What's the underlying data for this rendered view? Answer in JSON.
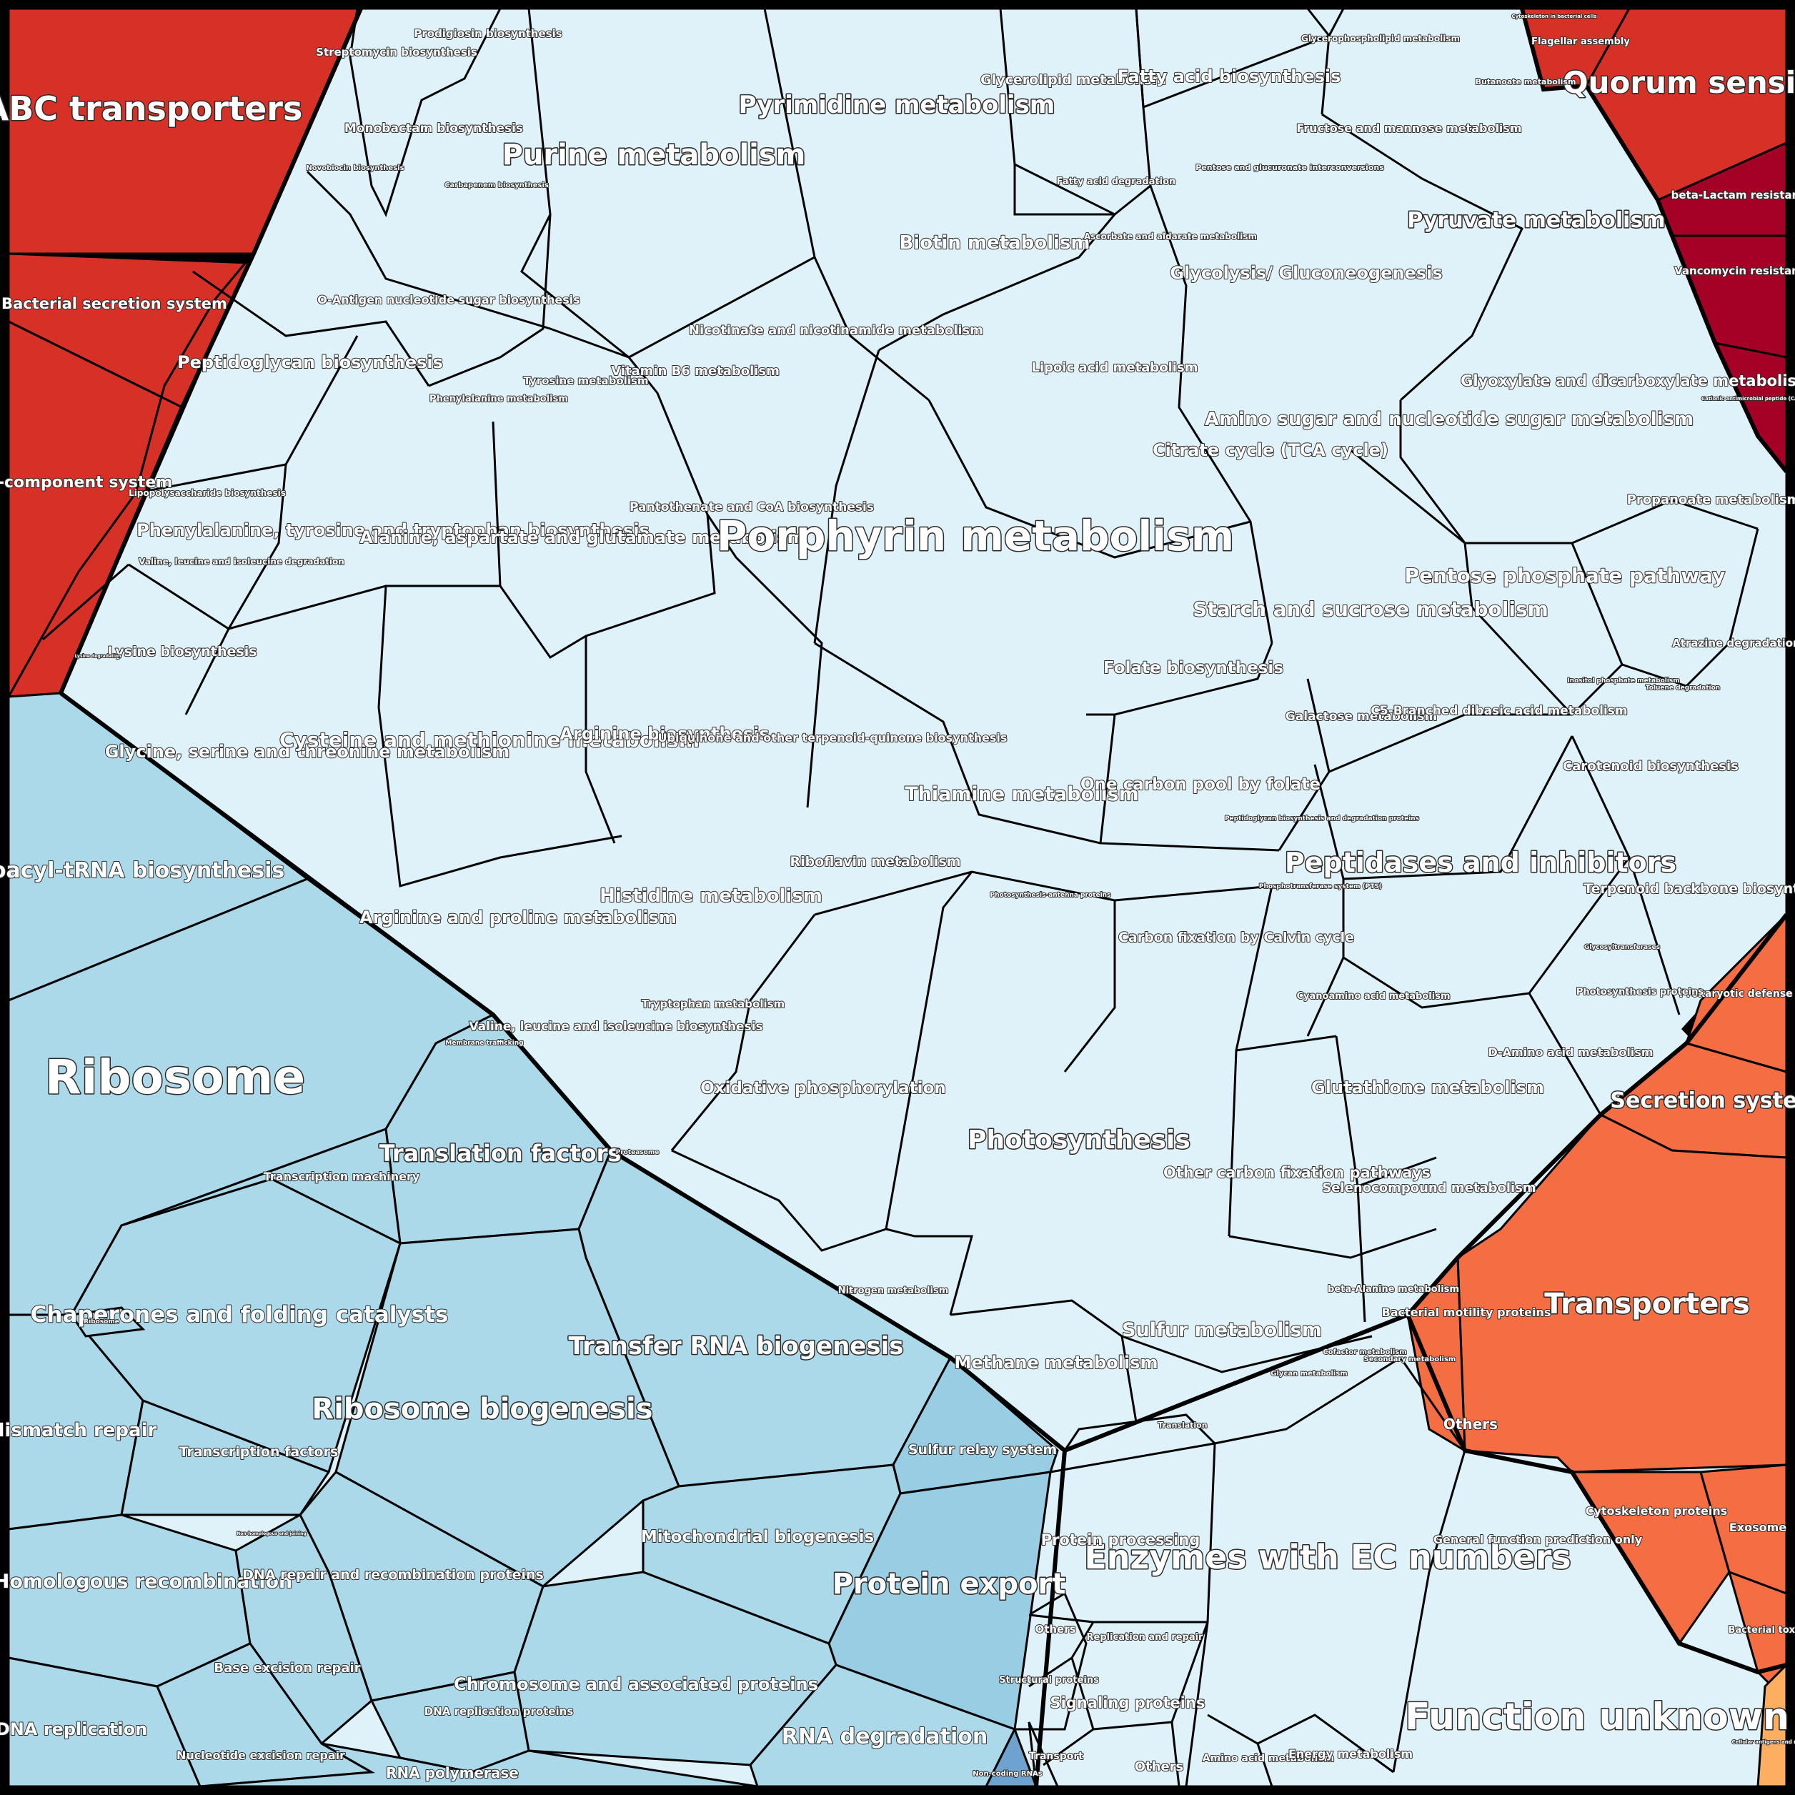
{
  "palette": {
    "light_blue": "#dff2f9",
    "mid_blue": "#abd9e9",
    "mid_blue_dark": "#99cde3",
    "steel_blue": "#6fa3cf",
    "red": "#d73027",
    "dark_red": "#a50026",
    "orange_red": "#f46d43",
    "orange": "#fdae61",
    "border": "#000000"
  },
  "regions": {
    "abc_transporters": "ABC transporters",
    "bacterial_secretion_system": "Bacterial secretion system",
    "two_component_system": "Two-component system",
    "quorum_sensing": "Quorum sensing",
    "flagellar_assembly": "Flagellar assembly",
    "cytoskeleton_bacterial": "Cytoskeleton in bacterial cells",
    "beta_lactam_resistance": "beta-Lactam resistance",
    "vancomycin_resistance": "Vancomycin resistance",
    "camp_resistance": "Cationic antimicrobial peptide (CAMP) resistance",
    "purine_metabolism": "Purine metabolism",
    "pyrimidine_metabolism": "Pyrimidine metabolism",
    "streptomycin_biosynthesis": "Streptomycin biosynthesis",
    "prodigiosin_biosynthesis": "Prodigiosin biosynthesis",
    "monobactam_biosynthesis": "Monobactam biosynthesis",
    "novobiocin_biosynthesis": "Novobiocin biosynthesis",
    "carbapenem_biosynthesis": "Carbapenem biosynthesis",
    "glycerolipid_metabolism": "Glycerolipid metabolism",
    "fatty_acid_biosynthesis": "Fatty acid biosynthesis",
    "glycerophospholipid_metabolism": "Glycerophospholipid metabolism",
    "butanoate_metabolism": "Butanoate metabolism",
    "fructose_mannose": "Fructose and mannose metabolism",
    "pentose_glucuronate": "Pentose and glucuronate interconversions",
    "fatty_acid_degradation": "Fatty acid degradation",
    "ascorbate_aldarate": "Ascorbate and aldarate metabolism",
    "pyruvate_metabolism": "Pyruvate metabolism",
    "glycolysis": "Glycolysis/ Gluconeogenesis",
    "biotin_metabolism": "Biotin metabolism",
    "o_antigen": "O-Antigen nucleotide sugar biosynthesis",
    "peptidoglycan": "Peptidoglycan biosynthesis",
    "nicotinate": "Nicotinate and nicotinamide metabolism",
    "lipoic_acid": "Lipoic acid metabolism",
    "vitamin_b6": "Vitamin B6 metabolism",
    "tyrosine_metabolism": "Tyrosine metabolism",
    "phenylalanine_metabolism": "Phenylalanine metabolism",
    "amino_sugar": "Amino sugar and nucleotide sugar metabolism",
    "glyoxylate": "Glyoxylate and dicarboxylate metabolism",
    "citrate_cycle": "Citrate cycle (TCA cycle)",
    "lipopolysaccharide": "Lipopolysaccharide biosynthesis",
    "phe_tyr_trp": "Phenylalanine, tyrosine and tryptophan biosynthesis",
    "ala_asp_glu": "Alanine, aspartate and glutamate metabolism",
    "pantothenate": "Pantothenate and CoA biosynthesis",
    "porphyrin": "Porphyrin metabolism",
    "propanoate": "Propanoate metabolism",
    "val_leu_ile_degradation": "Valine, leucine and isoleucine degradation",
    "starch_sucrose": "Starch and sucrose metabolism",
    "pentose_phosphate": "Pentose phosphate pathway",
    "lysine_biosynthesis": "Lysine biosynthesis",
    "lysine_degradation": "Lysine degradation",
    "atrazine_degradation": "Atrazine degradation",
    "folate_biosynthesis": "Folate biosynthesis",
    "inositol_phosphate": "Inositol phosphate metabolism",
    "toluene_degradation": "Toluene degradation",
    "galactose": "Galactose metabolism",
    "c5_branched": "C5-Branched dibasic acid metabolism",
    "glycine_serine_threonine": "Glycine, serine and threonine metabolism",
    "cysteine_methionine": "Cysteine and methionine metabolism",
    "arginine_biosynthesis": "Arginine biosynthesis",
    "ubiquinone": "Ubiquinone and other terpenoid-quinone biosynthesis",
    "thiamine": "Thiamine metabolism",
    "one_carbon": "One carbon pool by folate",
    "carotenoid": "Carotenoid biosynthesis",
    "aminoacyl_trna": "Aminoacyl-tRNA biosynthesis",
    "peptidases": "Peptidases and inhibitors",
    "peptidoglycan_proteins": "Peptidoglycan biosynthesis and degradation proteins",
    "riboflavin": "Riboflavin metabolism",
    "arginine_proline": "Arginine and proline metabolism",
    "histidine": "Histidine metabolism",
    "photosynthesis_antenna": "Photosynthesis-antenna proteins",
    "carbon_fixation_calvin": "Carbon fixation by Calvin cycle",
    "phosphotransferase": "Phosphotransferase system (PTS)",
    "terpenoid_backbone": "Terpenoid backbone biosynthesis",
    "glycosyltransferases": "Glycosyltransferases",
    "prokaryotic_defense": "Prokaryotic defense system",
    "cyanoamino_acid": "Cyanoamino acid metabolism",
    "photosynthesis_proteins": "Photosynthesis proteins",
    "tryptophan": "Tryptophan metabolism",
    "val_leu_ile_biosynthesis": "Valine, leucine and isoleucine biosynthesis",
    "ribosome": "Ribosome",
    "membrane_trafficking": "Membrane trafficking",
    "d_amino_acid": "D-Amino acid metabolism",
    "oxidative_phosphorylation": "Oxidative phosphorylation",
    "glutathione": "Glutathione metabolism",
    "secretion_system": "Secretion system",
    "translation_factors": "Translation factors",
    "transcription_machinery": "Transcription machinery",
    "proteasome": "Proteasome",
    "photosynthesis": "Photosynthesis",
    "other_carbon_fixation": "Other carbon fixation pathways",
    "selenocompound": "Selenocompound metabolism",
    "chaperones": "Chaperones and folding catalysts",
    "transfer_rna_biogenesis": "Transfer RNA biogenesis",
    "ribosome_small": "Ribosome",
    "transporters": "Transporters",
    "nitrogen": "Nitrogen metabolism",
    "beta_alanine": "beta-Alanine metabolism",
    "bacterial_motility": "Bacterial motility proteins",
    "sulfur_metabolism": "Sulfur metabolism",
    "methane": "Methane metabolism",
    "glycan_metabolism": "Glycan metabolism",
    "cofactor_metabolism": "Cofactor metabolism",
    "secondary_metabolism": "Secondary metabolism",
    "mismatch_repair": "Mismatch repair",
    "transcription_factors": "Transcription factors",
    "ribosome_biogenesis": "Ribosome biogenesis",
    "sulfur_relay": "Sulfur relay system",
    "translation": "Translation",
    "others_top": "Others",
    "enzymes_ec": "Enzymes with EC numbers",
    "general_function": "General function prediction only",
    "cytoskeleton_proteins": "Cytoskeleton proteins",
    "exosome": "Exosome",
    "mitochondrial_biogenesis": "Mitochondrial biogenesis",
    "protein_processing": "Protein processing",
    "homologous_recombination": "Homologous recombination",
    "homologous_end_joining": "Non-homologous end-joining",
    "dna_repair_recombination": "DNA repair and recombination proteins",
    "protein_export": "Protein export",
    "others_mid": "Others",
    "replication_repair": "Replication and repair",
    "bacterial_toxins": "Bacterial toxins",
    "base_excision_repair": "Base excision repair",
    "chromosome": "Chromosome and associated proteins",
    "structural_proteins": "Structural proteins",
    "signaling_proteins": "Signaling proteins",
    "function_unknown": "Function unknown",
    "dna_replication": "DNA replication",
    "dna_replication_proteins": "DNA replication proteins",
    "rna_degradation": "RNA degradation",
    "nucleotide_excision_repair": "Nucleotide excision repair",
    "carbohydrate_metabolism": "Carbohydrate metabolism",
    "transport": "Transport",
    "others_bottom": "Others",
    "amino_acid_metabolism": "Amino acid metabolism",
    "energy_metabolism": "Energy metabolism",
    "rna_polymerase": "RNA polymerase",
    "non_coding_rnas": "Non-coding RNAs",
    "cellular_antigens": "Cellular antigens and metabolism"
  }
}
